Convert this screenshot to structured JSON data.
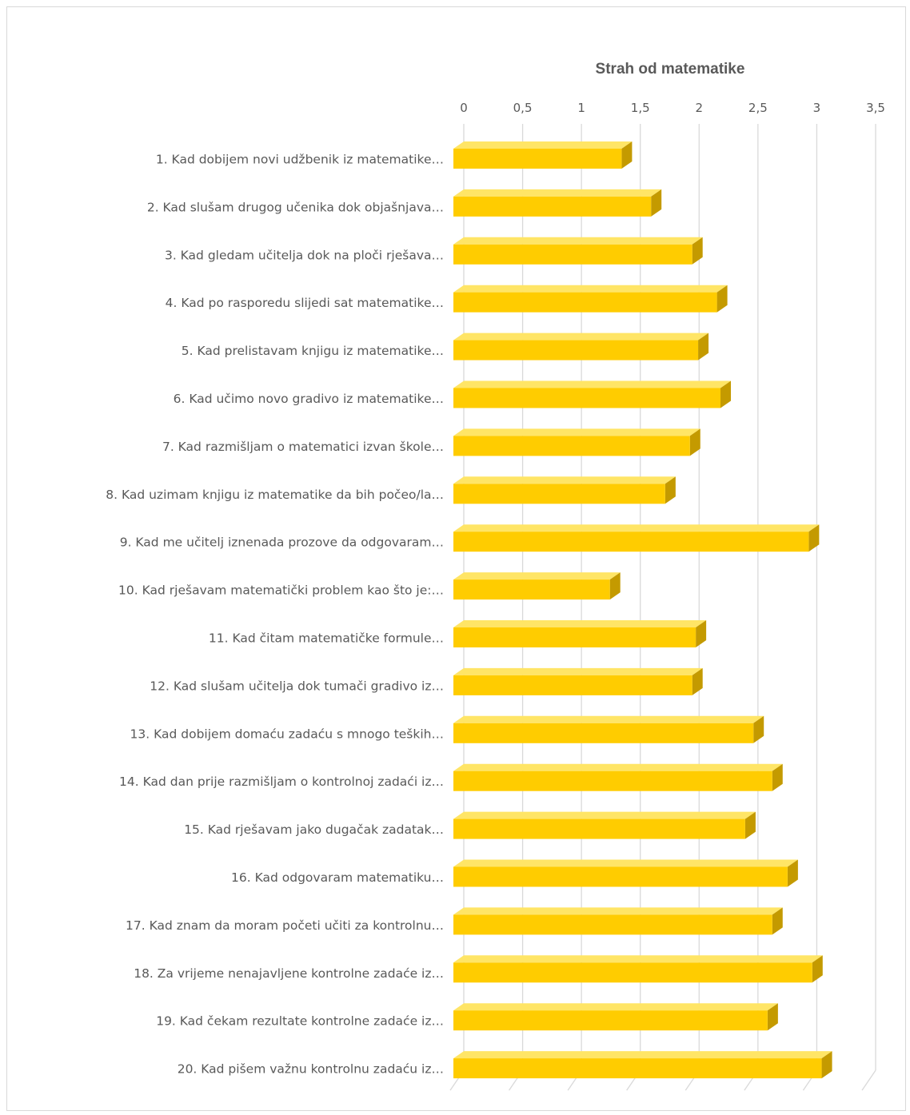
{
  "chart_data": {
    "type": "bar",
    "orientation": "horizontal",
    "style": "3d",
    "title": "Strah od matematike",
    "xlabel": "",
    "ylabel": "",
    "xlim": [
      0,
      3.5
    ],
    "ticks": [
      "0",
      "0,5",
      "1",
      "1,5",
      "2",
      "2,5",
      "3",
      "3,5"
    ],
    "tick_values": [
      0,
      0.5,
      1,
      1.5,
      2,
      2.5,
      3,
      3.5
    ],
    "grid": true,
    "legend": "none",
    "colors": {
      "bar": "#ffcc00",
      "bar_top": "#ffe566",
      "bar_side": "#c49a00",
      "grid": "#d9d9d9",
      "text": "#595959"
    },
    "categories": [
      "1. Kad dobijem novi udžbenik iz matematike…",
      "2. Kad slušam drugog učenika dok objašnjava…",
      "3. Kad gledam učitelja dok na ploči rješava…",
      "4. Kad po rasporedu slijedi sat matematike…",
      "5. Kad prelistavam knjigu iz matematike…",
      "6. Kad učimo novo gradivo iz matematike…",
      "7. Kad razmišljam o matematici izvan škole…",
      "8. Kad uzimam knjigu iz matematike da bih počeo/la…",
      "9. Kad me učitelj iznenada prozove da odgovaram…",
      "10. Kad rješavam matematički problem kao što je:…",
      "11. Kad čitam matematičke formule…",
      "12. Kad slušam učitelja dok tumači gradivo iz…",
      "13. Kad dobijem domaću zadaću s mnogo teških…",
      "14. Kad dan prije razmišljam o kontrolnoj zadaći iz…",
      "15. Kad rješavam jako dugačak zadatak…",
      "16. Kad odgovaram matematiku…",
      "17. Kad znam da moram početi učiti za kontrolnu…",
      "18. Za vrijeme nenajavljene kontrolne zadaće iz…",
      "19. Kad čekam rezultate kontrolne zadaće iz…",
      "20. Kad pišem važnu kontrolnu zadaću iz…"
    ],
    "values": [
      1.43,
      1.68,
      2.03,
      2.24,
      2.08,
      2.27,
      2.01,
      1.8,
      3.02,
      1.33,
      2.06,
      2.03,
      2.55,
      2.71,
      2.48,
      2.84,
      2.71,
      3.05,
      2.67,
      3.13
    ]
  }
}
